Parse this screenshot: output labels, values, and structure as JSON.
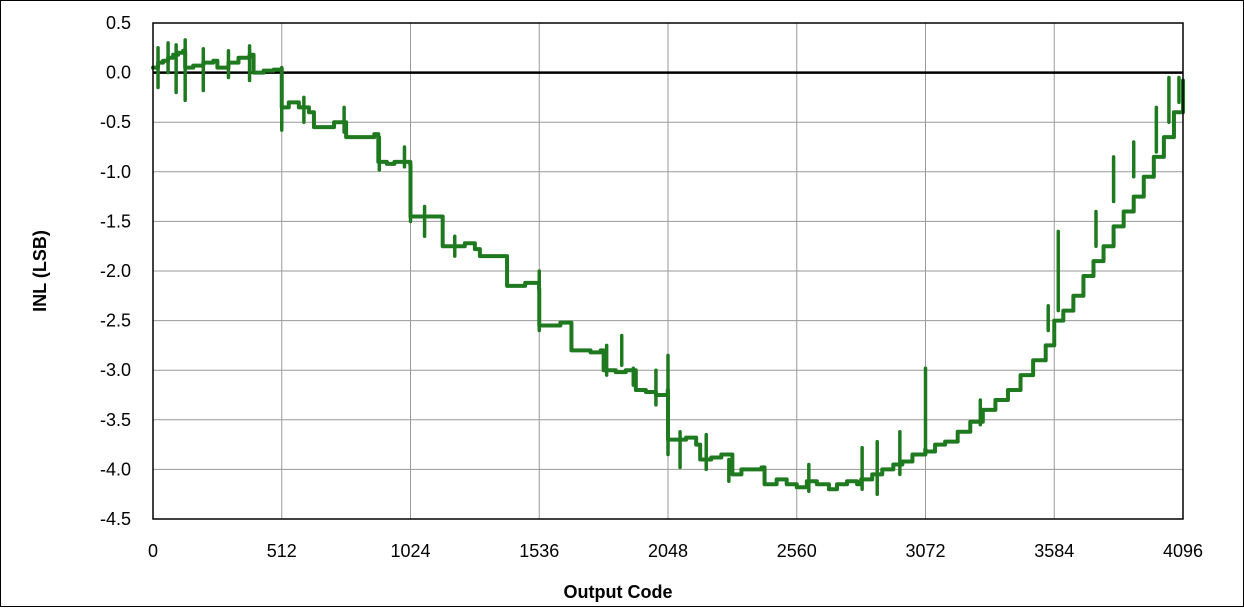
{
  "chart_data": {
    "type": "line",
    "title": "",
    "xlabel": "Output Code",
    "ylabel": "INL (LSB)",
    "xlim": [
      0,
      4096
    ],
    "ylim": [
      -4.5,
      0.5
    ],
    "xticks": [
      0,
      512,
      1024,
      1536,
      2048,
      2560,
      3072,
      3584,
      4096
    ],
    "xtick_labels": [
      "0",
      "512",
      "1024",
      "1536",
      "2048",
      "2560",
      "3072",
      "3584",
      "4096"
    ],
    "yticks": [
      0.5,
      0.0,
      -0.5,
      -1.0,
      -1.5,
      -2.0,
      -2.5,
      -3.0,
      -3.5,
      -4.0,
      -4.5
    ],
    "ytick_labels": [
      "0.5",
      "0.0",
      "-0.5",
      "-1.0",
      "-1.5",
      "-2.0",
      "-2.5",
      "-3.0",
      "-3.5",
      "-4.0",
      "-4.5"
    ],
    "grid": true,
    "legend": "none",
    "zero_line": true,
    "series": [
      {
        "color": "#1f7a1f",
        "x": [
          0,
          20,
          40,
          60,
          80,
          100,
          120,
          128,
          160,
          200,
          240,
          256,
          300,
          340,
          384,
          400,
          440,
          480,
          511,
          512,
          540,
          580,
          620,
          640,
          680,
          720,
          768,
          800,
          840,
          880,
          896,
          930,
          960,
          1000,
          1023,
          1024,
          1060,
          1100,
          1140,
          1152,
          1200,
          1240,
          1280,
          1300,
          1340,
          1380,
          1408,
          1440,
          1480,
          1535,
          1536,
          1580,
          1620,
          1664,
          1700,
          1740,
          1780,
          1792,
          1840,
          1880,
          1920,
          1960,
          2000,
          2047,
          2048,
          2080,
          2120,
          2160,
          2176,
          2220,
          2260,
          2304,
          2340,
          2380,
          2420,
          2432,
          2480,
          2520,
          2560,
          2600,
          2640,
          2688,
          2720,
          2760,
          2800,
          2816,
          2860,
          2900,
          2944,
          2980,
          3020,
          3071,
          3072,
          3110,
          3150,
          3200,
          3250,
          3300,
          3350,
          3400,
          3450,
          3500,
          3550,
          3584,
          3620,
          3660,
          3700,
          3740,
          3780,
          3820,
          3860,
          3900,
          3940,
          3980,
          4020,
          4060,
          4096
        ],
        "y": [
          0.05,
          0.1,
          0.12,
          0.15,
          0.18,
          0.2,
          0.22,
          0.05,
          0.07,
          0.1,
          0.12,
          0.05,
          0.1,
          0.15,
          0.18,
          0.0,
          0.02,
          0.03,
          0.04,
          -0.35,
          -0.3,
          -0.35,
          -0.4,
          -0.55,
          -0.55,
          -0.5,
          -0.65,
          -0.65,
          -0.65,
          -0.62,
          -0.9,
          -0.92,
          -0.9,
          -0.9,
          -0.93,
          -1.45,
          -1.45,
          -1.45,
          -1.45,
          -1.75,
          -1.75,
          -1.72,
          -1.78,
          -1.85,
          -1.85,
          -1.85,
          -2.15,
          -2.15,
          -2.12,
          -2.18,
          -2.55,
          -2.55,
          -2.52,
          -2.8,
          -2.8,
          -2.82,
          -2.8,
          -3.0,
          -3.02,
          -3.0,
          -3.2,
          -3.22,
          -3.25,
          -3.2,
          -3.7,
          -3.7,
          -3.68,
          -3.75,
          -3.9,
          -3.88,
          -3.85,
          -4.05,
          -4.0,
          -4.0,
          -3.98,
          -4.15,
          -4.1,
          -4.15,
          -4.18,
          -4.12,
          -4.15,
          -4.2,
          -4.15,
          -4.12,
          -4.15,
          -4.1,
          -4.05,
          -4.0,
          -3.95,
          -3.92,
          -3.85,
          -3.8,
          -3.82,
          -3.75,
          -3.72,
          -3.62,
          -3.52,
          -3.4,
          -3.3,
          -3.2,
          -3.05,
          -2.9,
          -2.75,
          -2.5,
          -2.4,
          -2.25,
          -2.05,
          -1.9,
          -1.75,
          -1.55,
          -1.4,
          -1.25,
          -1.05,
          -0.85,
          -0.65,
          -0.4,
          -0.08
        ]
      }
    ],
    "spikes": [
      {
        "x": 20,
        "y": 0.25,
        "base": -0.15
      },
      {
        "x": 60,
        "y": 0.3,
        "base": 0.0
      },
      {
        "x": 92,
        "y": 0.28,
        "base": -0.2
      },
      {
        "x": 128,
        "y": 0.33,
        "base": -0.28
      },
      {
        "x": 200,
        "y": 0.24,
        "base": -0.18
      },
      {
        "x": 300,
        "y": 0.22,
        "base": -0.05
      },
      {
        "x": 384,
        "y": 0.27,
        "base": -0.08
      },
      {
        "x": 512,
        "y": 0.05,
        "base": -0.58
      },
      {
        "x": 600,
        "y": -0.25,
        "base": -0.5
      },
      {
        "x": 760,
        "y": -0.35,
        "base": -0.6
      },
      {
        "x": 900,
        "y": -0.65,
        "base": -0.98
      },
      {
        "x": 1000,
        "y": -0.75,
        "base": -0.95
      },
      {
        "x": 1024,
        "y": -0.9,
        "base": -1.5
      },
      {
        "x": 1080,
        "y": -1.35,
        "base": -1.65
      },
      {
        "x": 1200,
        "y": -1.65,
        "base": -1.85
      },
      {
        "x": 1536,
        "y": -2.0,
        "base": -2.6
      },
      {
        "x": 1804,
        "y": -2.75,
        "base": -3.05
      },
      {
        "x": 1864,
        "y": -2.65,
        "base": -2.95
      },
      {
        "x": 1910,
        "y": -2.98,
        "base": -3.15
      },
      {
        "x": 2000,
        "y": -3.0,
        "base": -3.35
      },
      {
        "x": 2048,
        "y": -2.85,
        "base": -3.85
      },
      {
        "x": 2096,
        "y": -3.62,
        "base": -3.98
      },
      {
        "x": 2200,
        "y": -3.65,
        "base": -4.0
      },
      {
        "x": 2290,
        "y": -3.9,
        "base": -4.12
      },
      {
        "x": 2608,
        "y": -3.95,
        "base": -4.22
      },
      {
        "x": 2820,
        "y": -3.78,
        "base": -4.2
      },
      {
        "x": 2880,
        "y": -3.72,
        "base": -4.25
      },
      {
        "x": 2970,
        "y": -3.62,
        "base": -4.05
      },
      {
        "x": 3072,
        "y": -2.98,
        "base": -3.85
      },
      {
        "x": 3290,
        "y": -3.3,
        "base": -3.55
      },
      {
        "x": 3560,
        "y": -2.35,
        "base": -2.6
      },
      {
        "x": 3600,
        "y": -1.6,
        "base": -2.4
      },
      {
        "x": 3750,
        "y": -1.4,
        "base": -1.75
      },
      {
        "x": 3820,
        "y": -0.85,
        "base": -1.3
      },
      {
        "x": 3900,
        "y": -0.7,
        "base": -1.05
      },
      {
        "x": 3990,
        "y": -0.35,
        "base": -0.8
      },
      {
        "x": 4040,
        "y": -0.05,
        "base": -0.5
      },
      {
        "x": 4080,
        "y": -0.05,
        "base": -0.3
      }
    ]
  }
}
